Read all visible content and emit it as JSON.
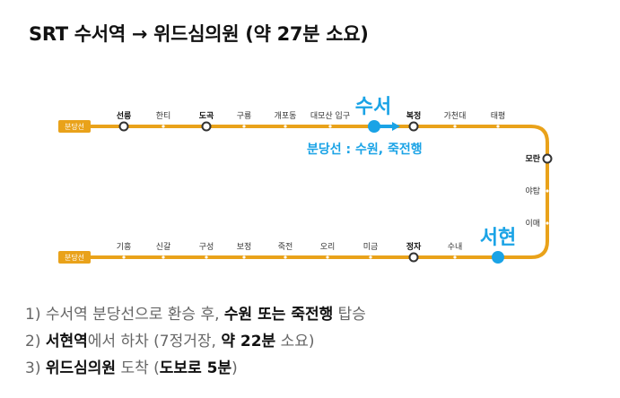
{
  "title": "SRT 수서역 → 위드심의원 (약 27분 소요)",
  "line_name": "분당선",
  "colors": {
    "line": "#e9a21a",
    "highlight": "#1aa3e6",
    "station_stroke": "#333333"
  },
  "top_row": [
    {
      "name": "선릉",
      "transfer": true
    },
    {
      "name": "한티",
      "transfer": false
    },
    {
      "name": "도곡",
      "transfer": true
    },
    {
      "name": "구룡",
      "transfer": false
    },
    {
      "name": "개포동",
      "transfer": false
    },
    {
      "name": "대모산 입구",
      "transfer": false
    },
    {
      "name": "수서",
      "transfer": false,
      "highlight": true
    },
    {
      "name": "복정",
      "transfer": true
    },
    {
      "name": "가천대",
      "transfer": false
    },
    {
      "name": "태평",
      "transfer": false
    }
  ],
  "side": [
    {
      "name": "모란",
      "transfer": true
    },
    {
      "name": "야탑",
      "transfer": false
    },
    {
      "name": "이매",
      "transfer": false
    }
  ],
  "bottom_row": [
    {
      "name": "기흥",
      "transfer": false
    },
    {
      "name": "신갈",
      "transfer": false
    },
    {
      "name": "구성",
      "transfer": false
    },
    {
      "name": "보정",
      "transfer": false
    },
    {
      "name": "죽전",
      "transfer": false
    },
    {
      "name": "오리",
      "transfer": false
    },
    {
      "name": "미금",
      "transfer": false
    },
    {
      "name": "정자",
      "transfer": true
    },
    {
      "name": "수내",
      "transfer": false
    },
    {
      "name": "서현",
      "transfer": false,
      "highlight": true
    }
  ],
  "labels": {
    "origin": "수서",
    "destination": "서현",
    "transfer_note": "분당선 : 수원, 죽전행"
  },
  "steps": [
    {
      "num": "1)",
      "pre": "수서역 분당선으로 환승 후,",
      "b1": "수원 또는 죽전행",
      "post": "탑승"
    },
    {
      "num": "2)",
      "b1": "서현역",
      "mid": "에서 하차 (7정거장,",
      "b2": "약 22분",
      "post": "소요)"
    },
    {
      "num": "3)",
      "b1": "위드심의원",
      "mid": "도착 (",
      "b2": "도보로 5분",
      "post": ")"
    }
  ]
}
